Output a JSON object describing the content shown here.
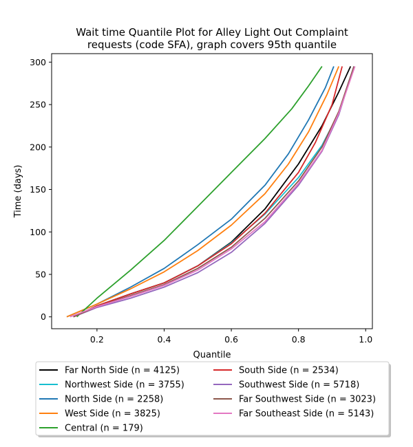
{
  "chart_data": {
    "type": "line",
    "title_lines": [
      "Wait time Quantile Plot for Alley Light Out Complaint",
      "requests (code SFA), graph covers 95th quantile"
    ],
    "xlabel": "Quantile",
    "ylabel": "Time (days)",
    "xlim": [
      0.065,
      1.02
    ],
    "ylim": [
      -14,
      310
    ],
    "xticks": [
      0.2,
      0.4,
      0.6,
      0.8,
      1.0
    ],
    "xtick_labels": [
      "0.2",
      "0.4",
      "0.6",
      "0.8",
      "1.0"
    ],
    "yticks": [
      0,
      50,
      100,
      150,
      200,
      250,
      300
    ],
    "ytick_labels": [
      "0",
      "50",
      "100",
      "150",
      "200",
      "250",
      "300"
    ],
    "grid": false,
    "legend_placement": "below plot",
    "series": [
      {
        "name": "Far North Side (n = 4125)",
        "color": "#000000",
        "x": [
          0.13,
          0.2,
          0.3,
          0.4,
          0.5,
          0.6,
          0.7,
          0.8,
          0.87,
          0.92,
          0.955
        ],
        "y": [
          0,
          13,
          27,
          40,
          60,
          88,
          127,
          180,
          225,
          265,
          295
        ]
      },
      {
        "name": "Northwest Side (n = 3755)",
        "color": "#17becf",
        "x": [
          0.13,
          0.2,
          0.3,
          0.4,
          0.5,
          0.6,
          0.7,
          0.8,
          0.87,
          0.92,
          0.965
        ],
        "y": [
          0,
          13,
          27,
          40,
          60,
          87,
          121,
          164,
          202,
          240,
          295
        ]
      },
      {
        "name": "North Side (n = 2258)",
        "color": "#1f77b4",
        "x": [
          0.11,
          0.2,
          0.3,
          0.4,
          0.5,
          0.6,
          0.7,
          0.77,
          0.83,
          0.88,
          0.905
        ],
        "y": [
          0,
          15,
          35,
          57,
          85,
          115,
          155,
          192,
          232,
          270,
          295
        ]
      },
      {
        "name": "West Side (n = 3825)",
        "color": "#ff7f0e",
        "x": [
          0.11,
          0.2,
          0.3,
          0.4,
          0.5,
          0.6,
          0.7,
          0.77,
          0.83,
          0.885,
          0.92
        ],
        "y": [
          0,
          15,
          33,
          53,
          78,
          108,
          145,
          180,
          218,
          262,
          295
        ]
      },
      {
        "name": "Central (n = 179)",
        "color": "#2ca02c",
        "x": [
          0.14,
          0.2,
          0.3,
          0.4,
          0.5,
          0.6,
          0.7,
          0.78,
          0.83,
          0.87
        ],
        "y": [
          0,
          22,
          55,
          90,
          130,
          170,
          210,
          245,
          272,
          295
        ]
      },
      {
        "name": "South Side (n = 2534)",
        "color": "#d62728",
        "x": [
          0.13,
          0.2,
          0.3,
          0.4,
          0.5,
          0.6,
          0.7,
          0.8,
          0.85,
          0.9,
          0.93
        ],
        "y": [
          0,
          13,
          27,
          40,
          60,
          86,
          122,
          170,
          205,
          250,
          295
        ]
      },
      {
        "name": "Southwest Side (n = 5718)",
        "color": "#9467bd",
        "x": [
          0.13,
          0.2,
          0.3,
          0.4,
          0.5,
          0.6,
          0.7,
          0.8,
          0.87,
          0.92,
          0.965
        ],
        "y": [
          0,
          11,
          22,
          35,
          52,
          76,
          110,
          155,
          195,
          238,
          295
        ]
      },
      {
        "name": "Far Southwest Side (n = 3023)",
        "color": "#8c564b",
        "x": [
          0.13,
          0.2,
          0.3,
          0.4,
          0.5,
          0.6,
          0.7,
          0.8,
          0.87,
          0.92,
          0.965
        ],
        "y": [
          0,
          12,
          25,
          38,
          57,
          82,
          116,
          160,
          200,
          242,
          295
        ]
      },
      {
        "name": "Far Southeast Side (n = 5143)",
        "color": "#e377c2",
        "x": [
          0.12,
          0.2,
          0.3,
          0.4,
          0.5,
          0.6,
          0.7,
          0.8,
          0.87,
          0.92,
          0.968
        ],
        "y": [
          0,
          12,
          24,
          37,
          55,
          80,
          112,
          157,
          196,
          240,
          295
        ]
      }
    ]
  }
}
